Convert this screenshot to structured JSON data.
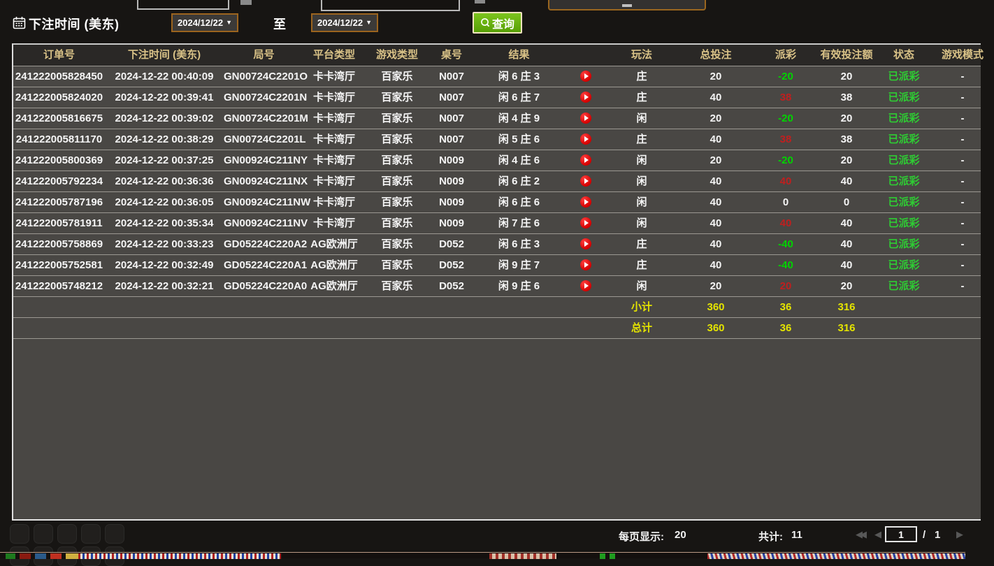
{
  "filters": {
    "bet_time_label": "下注时间 (美东)",
    "date_from": "2024/12/22",
    "to_label": "至",
    "date_to": "2024/12/22",
    "query_button": "查询"
  },
  "table": {
    "columns": [
      "订单号",
      "下注时间 (美东)",
      "局号",
      "平台类型",
      "游戏类型",
      "桌号",
      "结果",
      "",
      "玩法",
      "总投注",
      "派彩",
      "有效投注额",
      "状态",
      "游戏模式"
    ],
    "rows": [
      {
        "order": "241222005828450",
        "time": "2024-12-22 00:40:09",
        "round": "GN00724C2201O",
        "platform": "卡卡湾厅",
        "game": "百家乐",
        "table": "N007",
        "result": "闲 6 庄 3",
        "play": "庄",
        "bet": "20",
        "payout": "-20",
        "payout_class": "neg",
        "valid": "20",
        "status": "已派彩",
        "mode": "-"
      },
      {
        "order": "241222005824020",
        "time": "2024-12-22 00:39:41",
        "round": "GN00724C2201N",
        "platform": "卡卡湾厅",
        "game": "百家乐",
        "table": "N007",
        "result": "闲 6 庄 7",
        "play": "庄",
        "bet": "40",
        "payout": "38",
        "payout_class": "pos",
        "valid": "38",
        "status": "已派彩",
        "mode": "-"
      },
      {
        "order": "241222005816675",
        "time": "2024-12-22 00:39:02",
        "round": "GN00724C2201M",
        "platform": "卡卡湾厅",
        "game": "百家乐",
        "table": "N007",
        "result": "闲 4 庄 9",
        "play": "闲",
        "bet": "20",
        "payout": "-20",
        "payout_class": "neg",
        "valid": "20",
        "status": "已派彩",
        "mode": "-"
      },
      {
        "order": "241222005811170",
        "time": "2024-12-22 00:38:29",
        "round": "GN00724C2201L",
        "platform": "卡卡湾厅",
        "game": "百家乐",
        "table": "N007",
        "result": "闲 5 庄 6",
        "play": "庄",
        "bet": "40",
        "payout": "38",
        "payout_class": "pos",
        "valid": "38",
        "status": "已派彩",
        "mode": "-"
      },
      {
        "order": "241222005800369",
        "time": "2024-12-22 00:37:25",
        "round": "GN00924C211NY",
        "platform": "卡卡湾厅",
        "game": "百家乐",
        "table": "N009",
        "result": "闲 4 庄 6",
        "play": "闲",
        "bet": "20",
        "payout": "-20",
        "payout_class": "neg",
        "valid": "20",
        "status": "已派彩",
        "mode": "-"
      },
      {
        "order": "241222005792234",
        "time": "2024-12-22 00:36:36",
        "round": "GN00924C211NX",
        "platform": "卡卡湾厅",
        "game": "百家乐",
        "table": "N009",
        "result": "闲 6 庄 2",
        "play": "闲",
        "bet": "40",
        "payout": "40",
        "payout_class": "pos",
        "valid": "40",
        "status": "已派彩",
        "mode": "-"
      },
      {
        "order": "241222005787196",
        "time": "2024-12-22 00:36:05",
        "round": "GN00924C211NW",
        "platform": "卡卡湾厅",
        "game": "百家乐",
        "table": "N009",
        "result": "闲 6 庄 6",
        "play": "闲",
        "bet": "40",
        "payout": "0",
        "payout_class": "zero",
        "valid": "0",
        "status": "已派彩",
        "mode": "-"
      },
      {
        "order": "241222005781911",
        "time": "2024-12-22 00:35:34",
        "round": "GN00924C211NV",
        "platform": "卡卡湾厅",
        "game": "百家乐",
        "table": "N009",
        "result": "闲 7 庄 6",
        "play": "闲",
        "bet": "40",
        "payout": "40",
        "payout_class": "pos",
        "valid": "40",
        "status": "已派彩",
        "mode": "-"
      },
      {
        "order": "241222005758869",
        "time": "2024-12-22 00:33:23",
        "round": "GD05224C220A2",
        "platform": "AG欧洲厅",
        "game": "百家乐",
        "table": "D052",
        "result": "闲 6 庄 3",
        "play": "庄",
        "bet": "40",
        "payout": "-40",
        "payout_class": "neg",
        "valid": "40",
        "status": "已派彩",
        "mode": "-"
      },
      {
        "order": "241222005752581",
        "time": "2024-12-22 00:32:49",
        "round": "GD05224C220A1",
        "platform": "AG欧洲厅",
        "game": "百家乐",
        "table": "D052",
        "result": "闲 9 庄 7",
        "play": "庄",
        "bet": "40",
        "payout": "-40",
        "payout_class": "neg",
        "valid": "40",
        "status": "已派彩",
        "mode": "-"
      },
      {
        "order": "241222005748212",
        "time": "2024-12-22 00:32:21",
        "round": "GD05224C220A0",
        "platform": "AG欧洲厅",
        "game": "百家乐",
        "table": "D052",
        "result": "闲 9 庄 6",
        "play": "闲",
        "bet": "20",
        "payout": "20",
        "payout_class": "pos",
        "valid": "20",
        "status": "已派彩",
        "mode": "-"
      }
    ],
    "subtotal_label": "小计",
    "subtotal": {
      "bet": "360",
      "payout": "36",
      "valid": "316"
    },
    "total_label": "总计",
    "total": {
      "bet": "360",
      "payout": "36",
      "valid": "316"
    }
  },
  "pagination": {
    "per_page_label": "每页显示:",
    "per_page_value": "20",
    "total_label": "共计:",
    "total_value": "11",
    "first_arrow": "◀◀",
    "prev_arrow": "◀",
    "next_arrow": "▶",
    "page_value": "1",
    "page_slash": "/",
    "page_total": "1"
  },
  "colors": {
    "win_red": "#bf1f1f",
    "loss_green": "#00d300",
    "status_green": "#2ecc33",
    "total_yellow": "#e4e400",
    "header_tan": "#d9c287",
    "query_green": "#58a006",
    "date_border_orange": "#9c641e",
    "panel_gray": "#494744"
  }
}
